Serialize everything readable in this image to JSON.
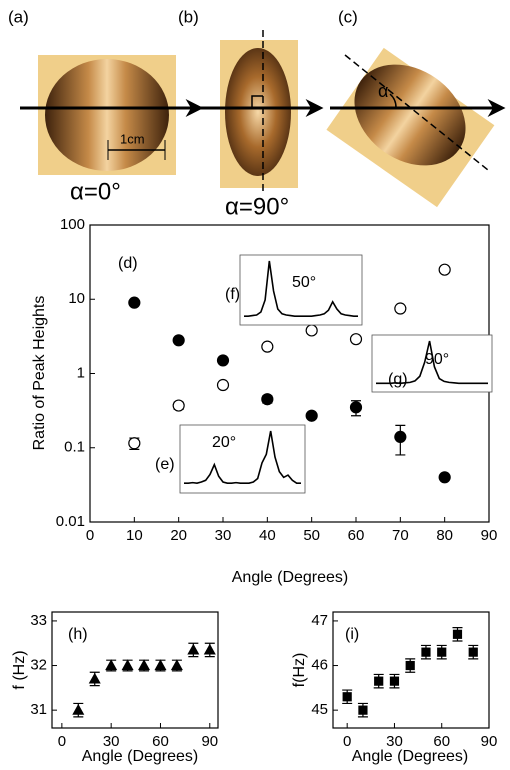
{
  "photos": [
    {
      "label": "(a)",
      "caption": "α=0°",
      "scale": "1cm"
    },
    {
      "label": "(b)",
      "caption": "α=90°"
    },
    {
      "label": "(c)",
      "angle": "α"
    }
  ],
  "chart_data": [
    {
      "type": "scatter",
      "label": "(d)",
      "xlabel": "Angle (Degrees)",
      "ylabel": "Ratio of Peak Heights",
      "log_y": true,
      "xlim": [
        0,
        90
      ],
      "xticks": [
        0,
        10,
        20,
        30,
        40,
        50,
        60,
        70,
        80,
        90
      ],
      "ylim": [
        0.01,
        100
      ],
      "yticks": [
        0.01,
        0.1,
        1,
        10,
        100
      ],
      "x": [
        10,
        20,
        30,
        40,
        50,
        60,
        70,
        80
      ],
      "series": [
        {
          "marker": "circle",
          "color": "#000000",
          "filled": true,
          "values": [
            9,
            2.8,
            1.5,
            0.45,
            0.27,
            0.35,
            0.14,
            0.04
          ],
          "errors": [
            0.5,
            0.2,
            0.1,
            0.05,
            0.02,
            0.08,
            0.06,
            0.003
          ]
        },
        {
          "marker": "circle",
          "color": "#000000",
          "filled": false,
          "values": [
            0.115,
            0.37,
            0.7,
            2.3,
            3.8,
            2.9,
            7.5,
            25
          ],
          "errors": [
            0.02,
            0.04,
            0.06,
            0.2,
            0.3,
            0.25,
            0.5,
            1
          ]
        }
      ]
    },
    {
      "type": "line",
      "label": "(e)",
      "annotation": "20°",
      "values": [
        0.1,
        0.1,
        0.11,
        0.1,
        0.12,
        0.15,
        0.25,
        0.42,
        0.22,
        0.12,
        0.1,
        0.1,
        0.11,
        0.1,
        0.1,
        0.1,
        0.12,
        0.18,
        0.45,
        0.6,
        1,
        0.55,
        0.3,
        0.2,
        0.24,
        0.15,
        0.1,
        0.1
      ]
    },
    {
      "type": "line",
      "label": "(f)",
      "annotation": "50°",
      "values": [
        0.08,
        0.08,
        0.09,
        0.1,
        0.15,
        0.35,
        1,
        0.5,
        0.2,
        0.12,
        0.1,
        0.09,
        0.08,
        0.08,
        0.08,
        0.08,
        0.08,
        0.09,
        0.1,
        0.12,
        0.18,
        0.32,
        0.2,
        0.12,
        0.1,
        0.09,
        0.08,
        0.08
      ]
    },
    {
      "type": "line",
      "label": "(g)",
      "annotation": "90°",
      "values": [
        0.1,
        0.1,
        0.1,
        0.1,
        0.11,
        0.1,
        0.11,
        0.12,
        0.15,
        0.25,
        0.55,
        1,
        0.45,
        0.2,
        0.14,
        0.12,
        0.11,
        0.1,
        0.1,
        0.1,
        0.1,
        0.1,
        0.1,
        0.1
      ]
    },
    {
      "type": "scatter",
      "label": "(h)",
      "xlabel": "Angle (Degrees)",
      "ylabel": "f (Hz)",
      "xlim": [
        -6,
        95
      ],
      "xticks": [
        0,
        30,
        60,
        90
      ],
      "ylim": [
        30.6,
        33.2
      ],
      "yticks": [
        31,
        32,
        33
      ],
      "x": [
        10,
        20,
        30,
        40,
        50,
        60,
        70,
        80,
        90
      ],
      "series": [
        {
          "marker": "triangle",
          "color": "#000000",
          "filled": true,
          "values": [
            31,
            31.7,
            32,
            32,
            32,
            32,
            32,
            32.35,
            32.35
          ],
          "errors": [
            0.15,
            0.15,
            0.12,
            0.12,
            0.12,
            0.12,
            0.12,
            0.15,
            0.15
          ]
        }
      ]
    },
    {
      "type": "scatter",
      "label": "(i)",
      "xlabel": "Angle (Degrees)",
      "ylabel": "f(Hz)",
      "xlim": [
        -9,
        90
      ],
      "xticks": [
        0,
        30,
        60,
        90
      ],
      "ylim": [
        44.6,
        47.2
      ],
      "yticks": [
        45,
        46,
        47
      ],
      "x": [
        0,
        10,
        20,
        30,
        40,
        50,
        60,
        70,
        80
      ],
      "series": [
        {
          "marker": "square",
          "color": "#000000",
          "filled": true,
          "values": [
            45.3,
            45,
            45.65,
            45.65,
            46,
            46.3,
            46.3,
            46.7,
            46.3
          ],
          "errors": [
            0.15,
            0.15,
            0.15,
            0.15,
            0.15,
            0.15,
            0.15,
            0.15,
            0.15
          ]
        }
      ]
    }
  ]
}
